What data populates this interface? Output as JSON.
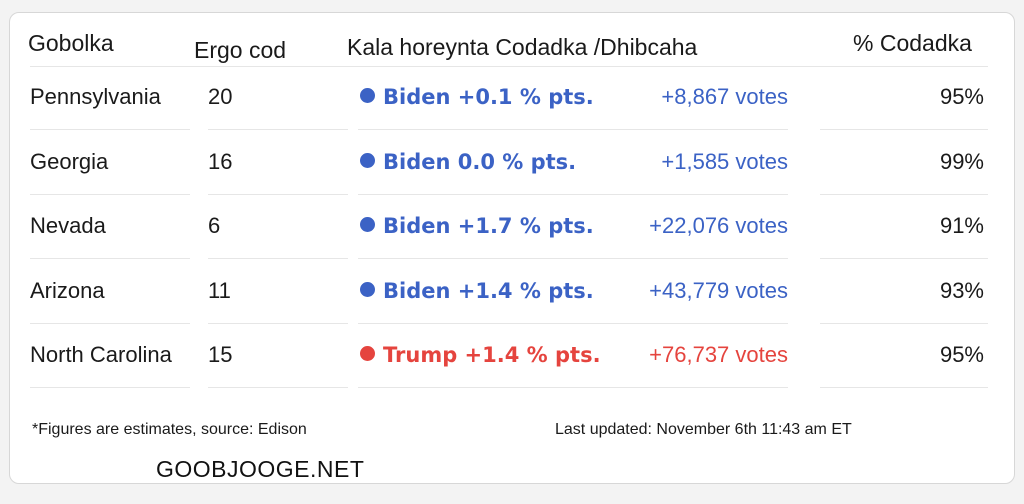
{
  "columns": {
    "state": "Gobolka",
    "electoral_votes": "Ergo cod",
    "leader_margin": "Kala horeynta Codadka /Dhibcaha",
    "percent_counted": "% Codadka"
  },
  "colors": {
    "biden": "#3b62c5",
    "trump": "#e5443e"
  },
  "rows": [
    {
      "state": "Pennsylvania",
      "ev": "20",
      "party": "biden",
      "margin": "Biden +0.1 % pts.",
      "votes": "+8,867 votes",
      "pct": "95%"
    },
    {
      "state": "Georgia",
      "ev": "16",
      "party": "biden",
      "margin": "Biden 0.0 % pts.",
      "votes": "+1,585 votes",
      "pct": "99%"
    },
    {
      "state": "Nevada",
      "ev": "6",
      "party": "biden",
      "margin": "Biden +1.7 % pts.",
      "votes": "+22,076 votes",
      "pct": "91%"
    },
    {
      "state": "Arizona",
      "ev": "11",
      "party": "biden",
      "margin": "Biden +1.4 % pts.",
      "votes": "+43,779 votes",
      "pct": "93%"
    },
    {
      "state": "North Carolina",
      "ev": "15",
      "party": "trump",
      "margin": "Trump +1.4 % pts.",
      "votes": "+76,737 votes",
      "pct": "95%"
    }
  ],
  "footer": {
    "source_note": "*Figures are estimates, source: Edison",
    "last_updated": "Last updated: November 6th 11:43 am ET"
  },
  "watermark": "GOOBJOOGE.NET"
}
